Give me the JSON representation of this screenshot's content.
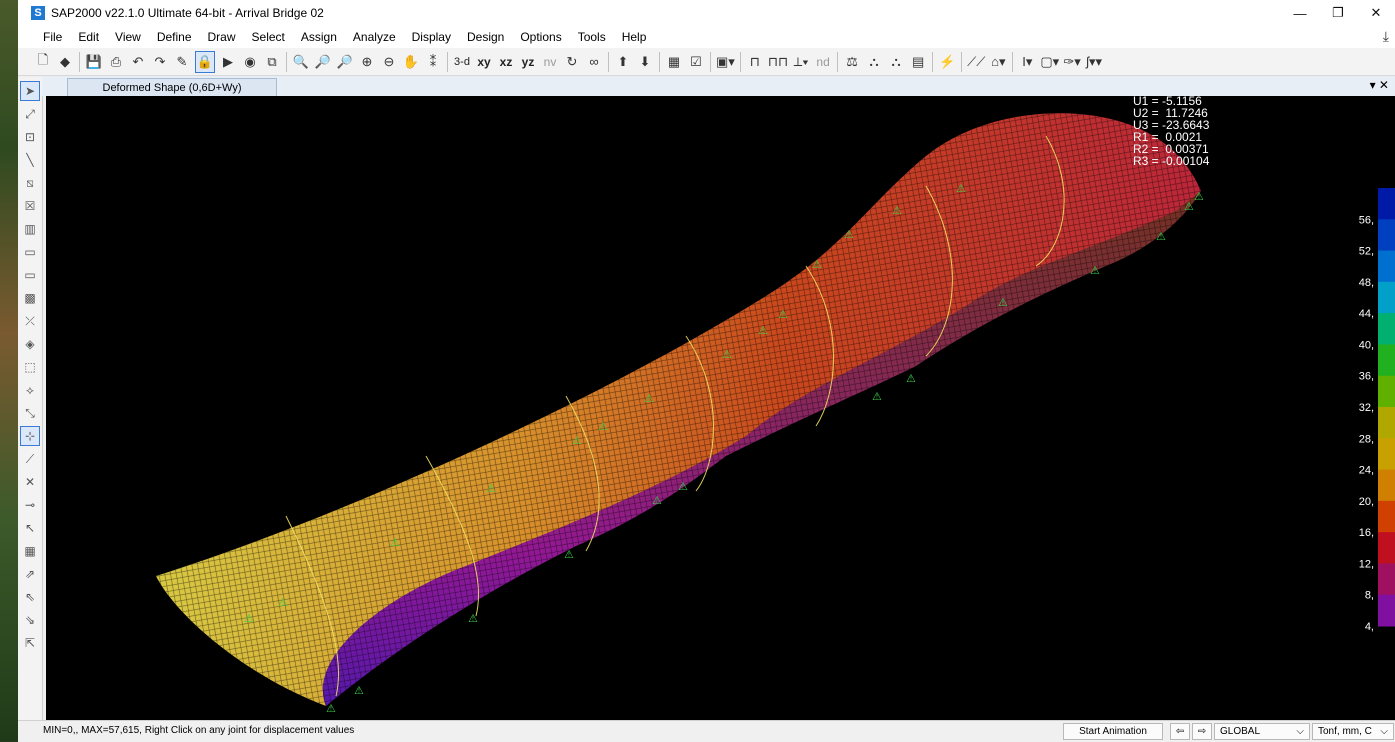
{
  "window": {
    "title": "SAP2000 v22.1.0 Ultimate 64-bit - Arrival Bridge 02",
    "logo_letter": "S",
    "controls": {
      "minimize": "—",
      "restore": "❐",
      "close": "✕"
    }
  },
  "menu": [
    "File",
    "Edit",
    "View",
    "Define",
    "Draw",
    "Select",
    "Assign",
    "Analyze",
    "Display",
    "Design",
    "Options",
    "Tools",
    "Help"
  ],
  "toolbar": {
    "view_labels": {
      "threed": "3-d",
      "xy": "xy",
      "xz": "xz",
      "yz": "yz",
      "nv": "nv",
      "nd": "nd"
    }
  },
  "tab": {
    "label": "Deformed Shape (0,6D+Wy)",
    "controls": "▾ ✕"
  },
  "readout": {
    "U1": "U1 = -5.1156",
    "U2": "U2 =  11.7246",
    "U3": "U3 = -23.6643",
    "R1": "R1 =  0.0021",
    "R2": "R2 =  0.00371",
    "R3": "R3 = -0.00104"
  },
  "legend": {
    "labels": [
      "56,",
      "52,",
      "48,",
      "44,",
      "40,",
      "36,",
      "32,",
      "28,",
      "24,",
      "20,",
      "16,",
      "12,",
      "8,",
      "4,"
    ],
    "colors": [
      "#001aa8",
      "#0040c0",
      "#0070d0",
      "#00a0c8",
      "#00b070",
      "#20b020",
      "#60b000",
      "#b0a800",
      "#c8a000",
      "#d08000",
      "#d04000",
      "#c01020",
      "#a01060",
      "#8010a0"
    ]
  },
  "status": {
    "text": "MIN=0,, MAX=57,615, Right Click on any joint for displacement values",
    "start_animation": "Start Animation",
    "coord_system": "GLOBAL",
    "units": "Tonf, mm, C"
  }
}
